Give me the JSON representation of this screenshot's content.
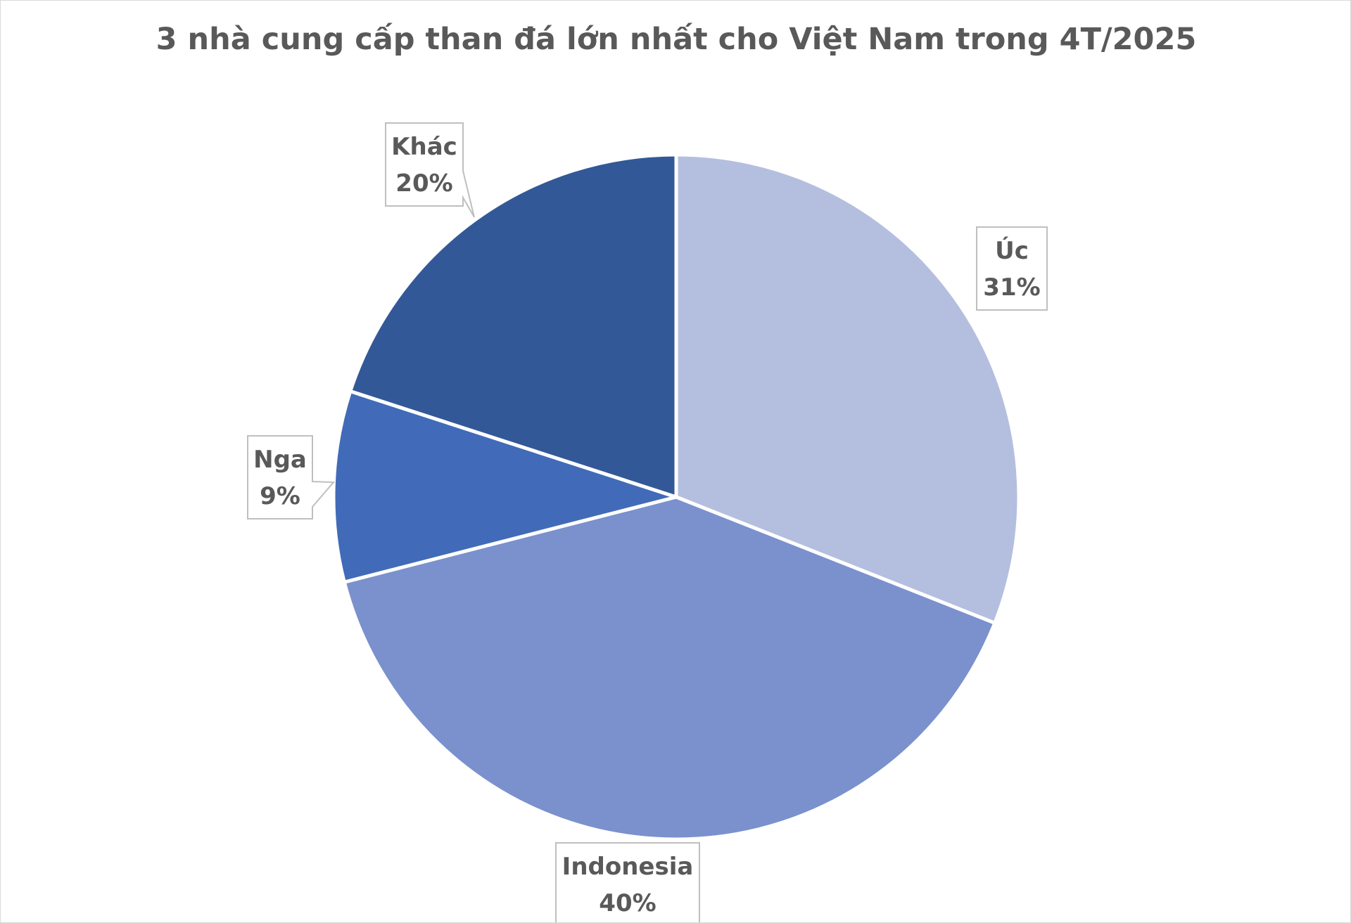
{
  "chart_data": {
    "type": "pie",
    "title": "3 nhà cung cấp than đá lớn nhất cho Việt Nam trong 4T/2025",
    "slices": [
      {
        "label": "Úc",
        "value": 31,
        "value_label": "31%",
        "color": "#b4bfdf"
      },
      {
        "label": "Indonesia",
        "value": 40,
        "value_label": "40%",
        "color": "#7a91cd"
      },
      {
        "label": "Nga",
        "value": 9,
        "value_label": "9%",
        "color": "#416bb8"
      },
      {
        "label": "Khác",
        "value": 20,
        "value_label": "20%",
        "color": "#335897"
      }
    ],
    "start_angle_deg": 0,
    "direction": "clockwise",
    "legend": "none",
    "data_labels": "callout boxes with category name and percentage"
  }
}
